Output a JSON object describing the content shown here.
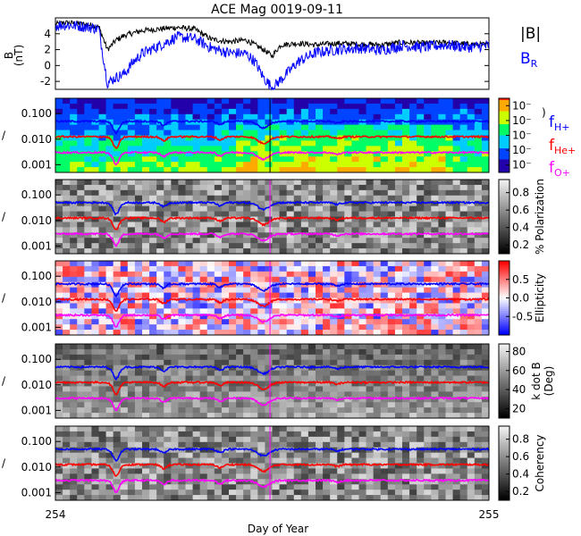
{
  "title": "ACE Mag 0019-09-11",
  "chart_data": [
    {
      "type": "line",
      "panel": "magnetic-field",
      "ylabel_main": "B",
      "ylabel_unit": "(nT)",
      "ylim": [
        -3,
        6
      ],
      "yticks": [
        "-2",
        "0",
        "2",
        "4"
      ],
      "ytick_values": [
        -2,
        0,
        2,
        4
      ],
      "xlim": [
        254,
        255
      ],
      "series": [
        {
          "name": "|B|",
          "color": "#000000",
          "x": [
            254.0,
            254.02,
            254.05,
            254.08,
            254.1,
            254.12,
            254.14,
            254.16,
            254.18,
            254.2,
            254.24,
            254.28,
            254.32,
            254.36,
            254.4,
            254.44,
            254.46,
            254.48,
            254.5,
            254.52,
            254.56,
            254.6,
            254.65,
            254.7,
            254.75,
            254.8,
            254.85,
            254.9,
            254.95,
            255.0
          ],
          "y": [
            5.2,
            5.4,
            5.3,
            5.1,
            4.9,
            2.0,
            3.2,
            3.8,
            4.1,
            4.4,
            4.6,
            4.8,
            4.6,
            3.3,
            3.0,
            3.2,
            2.6,
            2.0,
            1.2,
            2.6,
            2.8,
            2.6,
            2.8,
            2.7,
            2.6,
            2.9,
            2.8,
            2.9,
            2.7,
            2.6
          ]
        },
        {
          "name": "B_R",
          "color": "#0000ff",
          "x": [
            254.0,
            254.02,
            254.05,
            254.08,
            254.1,
            254.12,
            254.14,
            254.16,
            254.18,
            254.2,
            254.24,
            254.28,
            254.32,
            254.36,
            254.4,
            254.44,
            254.46,
            254.48,
            254.5,
            254.52,
            254.56,
            254.6,
            254.65,
            254.7,
            254.75,
            254.8,
            254.85,
            254.9,
            254.95,
            255.0
          ],
          "y": [
            5.0,
            5.1,
            5.0,
            4.8,
            4.6,
            -2.2,
            -1.5,
            -1.0,
            0.5,
            1.5,
            2.5,
            3.6,
            3.4,
            2.2,
            1.6,
            1.5,
            0.5,
            -1.5,
            -2.8,
            -1.8,
            0.5,
            1.6,
            2.0,
            2.2,
            1.9,
            2.5,
            2.3,
            2.6,
            2.3,
            2.5
          ]
        }
      ]
    },
    {
      "type": "heatmap",
      "panel": "power-spectrum",
      "colorbar_ticks": [
        "10⁻",
        "10⁻",
        "10⁻",
        "10⁻",
        "10⁻"
      ],
      "colorbar_colors": [
        "#2200aa",
        "#0044ff",
        "#00ccff",
        "#00ff66",
        "#ccff00",
        "#ffaa00",
        "#ff2200"
      ]
    },
    {
      "type": "heatmap",
      "panel": "polarization",
      "colorbar_label": "% Polarization",
      "colorbar_ticks": [
        "0.2",
        "0.4",
        "0.6",
        "0.8"
      ],
      "colorbar_range": [
        0.1,
        0.95
      ]
    },
    {
      "type": "heatmap",
      "panel": "ellipticity",
      "colorbar_label": "Ellipticity",
      "colorbar_ticks": [
        "-0.5",
        "0.0",
        "0.5"
      ],
      "colorbar_range": [
        -1,
        1
      ]
    },
    {
      "type": "heatmap",
      "panel": "k-dot-b",
      "colorbar_label": "k dot B",
      "colorbar_label_2": "(Deg)",
      "colorbar_ticks": [
        "20",
        "40",
        "60",
        "80"
      ],
      "colorbar_range": [
        10,
        88
      ]
    },
    {
      "type": "heatmap",
      "panel": "coherency",
      "colorbar_label": "Coherency",
      "colorbar_ticks": [
        "0.2",
        "0.4",
        "0.6",
        "0.8"
      ],
      "colorbar_range": [
        0.1,
        0.95
      ]
    }
  ],
  "freq_axis": {
    "yticks": [
      "0.100",
      "0.010",
      "0.001"
    ],
    "ytick_values": [
      0.1,
      0.01,
      0.001
    ],
    "ylim": [
      0.0005,
      0.4
    ]
  },
  "gyro_lines": [
    {
      "name": "H+",
      "color": "#0000ff",
      "base": 0.05
    },
    {
      "name": "He+",
      "color": "#ff0000",
      "base": 0.0125
    },
    {
      "name": "O+",
      "color": "#ff00ff",
      "base": 0.003
    }
  ],
  "legend": {
    "mag": [
      {
        "main": "|B|",
        "sub": "",
        "color": "#000000"
      },
      {
        "main": "B",
        "sub": "R",
        "color": "#0000ff"
      }
    ],
    "gyro": [
      {
        "main": "f",
        "sub": "H+",
        "color": "#0000ff"
      },
      {
        "main": "f",
        "sub": "He+",
        "color": "#ff0000"
      },
      {
        "main": "f",
        "sub": "O+",
        "color": "#ff00ff"
      }
    ]
  },
  "xaxis": {
    "label": "Day of Year",
    "ticks": [
      "254",
      "255"
    ],
    "tick_values": [
      254,
      255
    ]
  },
  "clip_glyphs": {
    "left": "/",
    "paren": ")"
  }
}
